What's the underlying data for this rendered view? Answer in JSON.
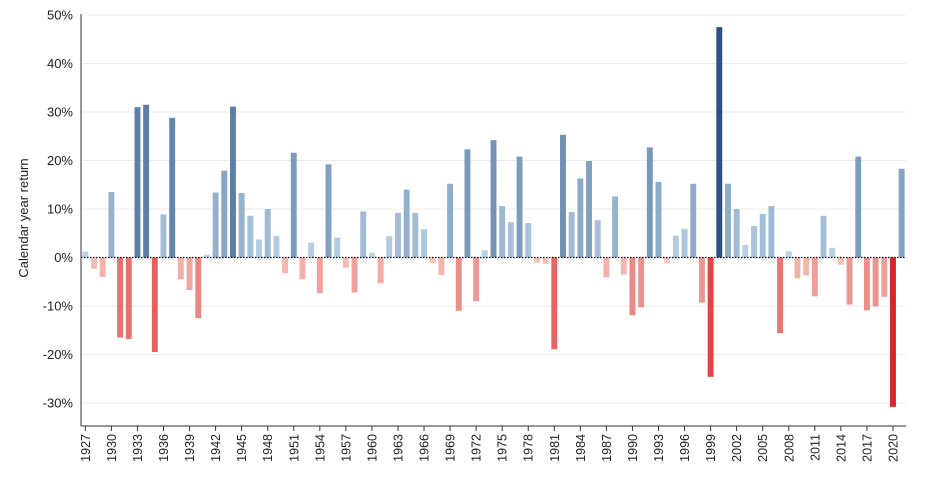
{
  "chart_data": {
    "type": "bar",
    "title": "",
    "xlabel": "",
    "ylabel": "Calendar year return",
    "ylim": [
      -34,
      50
    ],
    "yticks": [
      50,
      40,
      30,
      20,
      10,
      0,
      -10,
      -20,
      -30
    ],
    "ytick_labels": [
      "50%",
      "40%",
      "30%",
      "20%",
      "10%",
      "0%",
      "-10%",
      "-20%",
      "-30%"
    ],
    "xtick_labels": [
      "1927",
      "1930",
      "1933",
      "1936",
      "1939",
      "1942",
      "1945",
      "1948",
      "1951",
      "1954",
      "1957",
      "1960",
      "1963",
      "1966",
      "1969",
      "1972",
      "1975",
      "1978",
      "1981",
      "1984",
      "1987",
      "1990",
      "1993",
      "1996",
      "1999",
      "2002",
      "2005",
      "2008",
      "2011",
      "2014",
      "2017",
      "2020"
    ],
    "grid": true,
    "colors": {
      "positive": "#2f5a8a",
      "negative": "#d93a3a",
      "baseline": "#000000"
    },
    "categories": [
      "1927",
      "1928",
      "1929",
      "1930",
      "1931",
      "1932",
      "1933",
      "1934",
      "1935",
      "1936",
      "1937",
      "1938",
      "1939",
      "1940",
      "1941",
      "1942",
      "1943",
      "1944",
      "1945",
      "1946",
      "1947",
      "1948",
      "1949",
      "1950",
      "1951",
      "1952",
      "1953",
      "1954",
      "1955",
      "1956",
      "1957",
      "1958",
      "1959",
      "1960",
      "1961",
      "1962",
      "1963",
      "1964",
      "1965",
      "1966",
      "1967",
      "1968",
      "1969",
      "1970",
      "1971",
      "1972",
      "1973",
      "1974",
      "1975",
      "1976",
      "1977",
      "1978",
      "1979",
      "1980",
      "1981",
      "1982",
      "1983",
      "1984",
      "1985",
      "1986",
      "1987",
      "1988",
      "1989",
      "1990",
      "1991",
      "1992",
      "1993",
      "1994",
      "1995",
      "1996",
      "1997",
      "1998",
      "1999",
      "2000",
      "2001",
      "2002",
      "2003",
      "2004",
      "2005",
      "2006",
      "2007",
      "2008",
      "2009",
      "2010",
      "2011",
      "2012",
      "2013",
      "2014",
      "2015",
      "2016",
      "2017",
      "2018",
      "2019",
      "2020",
      "2021"
    ],
    "values": [
      1.2,
      -2.3,
      -4.0,
      13.5,
      -16.5,
      -16.8,
      31.0,
      31.5,
      -19.5,
      8.9,
      28.8,
      -4.5,
      -6.7,
      -12.5,
      0.6,
      13.4,
      17.9,
      31.1,
      13.3,
      8.6,
      3.7,
      10.0,
      4.4,
      -3.2,
      21.6,
      -4.5,
      3.1,
      -7.4,
      19.2,
      4.1,
      -2.1,
      -7.2,
      9.5,
      1.0,
      -5.3,
      4.4,
      9.2,
      14.0,
      9.2,
      5.8,
      -1.2,
      -3.6,
      15.2,
      -11.0,
      22.3,
      -9.0,
      1.5,
      24.2,
      10.6,
      7.3,
      20.8,
      7.1,
      -1.1,
      -1.3,
      -18.9,
      25.3,
      9.4,
      16.3,
      19.9,
      7.7,
      -4.1,
      12.6,
      -3.5,
      -11.9,
      -10.3,
      22.7,
      15.6,
      -1.2,
      4.5,
      5.9,
      15.2,
      -9.3,
      -24.6,
      47.5,
      15.2,
      10.0,
      2.6,
      6.5,
      9.0,
      10.6,
      -15.6,
      1.3,
      -4.3,
      -3.7,
      -8.0,
      8.6,
      2.0,
      -1.5,
      -9.7,
      20.8,
      -10.9,
      -10.1,
      -8.1,
      -30.8,
      18.3
    ]
  }
}
